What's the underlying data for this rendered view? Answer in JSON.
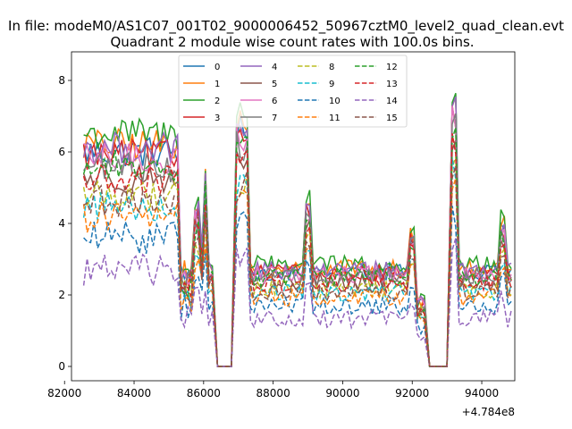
{
  "chart_data": {
    "type": "line",
    "suptitle": "In file: modeM0/AS1C07_001T02_9000006452_50967cztM0_level2_quad_clean.evt",
    "title": "Quadrant 2 module wise count rates with 100.0s bins.",
    "xlabel": "",
    "ylabel": "",
    "x_offset_label": "+4.784e8",
    "xlim": [
      82200,
      94950
    ],
    "ylim": [
      -0.4,
      8.8
    ],
    "xticks": [
      82000,
      84000,
      86000,
      88000,
      90000,
      92000,
      94000
    ],
    "yticks": [
      0,
      2,
      4,
      6,
      8
    ],
    "legend_position": "upper center",
    "legend_ncol": 4,
    "segments": [
      [
        82550,
        86250
      ],
      [
        86950,
        92350
      ],
      [
        93150,
        94850
      ]
    ],
    "series": [
      {
        "name": "0",
        "color": "#1f77b4",
        "dash": "solid",
        "level": 6.0
      },
      {
        "name": "1",
        "color": "#ff7f0e",
        "dash": "solid",
        "level": 6.2
      },
      {
        "name": "2",
        "color": "#2ca02c",
        "dash": "solid",
        "level": 6.5
      },
      {
        "name": "3",
        "color": "#d62728",
        "dash": "solid",
        "level": 5.9
      },
      {
        "name": "4",
        "color": "#9467bd",
        "dash": "solid",
        "level": 6.1
      },
      {
        "name": "5",
        "color": "#8c564b",
        "dash": "solid",
        "level": 5.3
      },
      {
        "name": "6",
        "color": "#e377c2",
        "dash": "solid",
        "level": 5.8
      },
      {
        "name": "7",
        "color": "#7f7f7f",
        "dash": "solid",
        "level": 5.6
      },
      {
        "name": "8",
        "color": "#bcbd22",
        "dash": "dashed",
        "level": 4.8
      },
      {
        "name": "9",
        "color": "#17becf",
        "dash": "dashed",
        "level": 4.5
      },
      {
        "name": "10",
        "color": "#1f77b4",
        "dash": "dashed",
        "level": 3.6
      },
      {
        "name": "11",
        "color": "#ff7f0e",
        "dash": "dashed",
        "level": 4.2
      },
      {
        "name": "12",
        "color": "#2ca02c",
        "dash": "dashed",
        "level": 5.6
      },
      {
        "name": "13",
        "color": "#d62728",
        "dash": "dashed",
        "level": 5.2
      },
      {
        "name": "14",
        "color": "#9467bd",
        "dash": "dashed",
        "level": 2.7
      },
      {
        "name": "15",
        "color": "#8c564b",
        "dash": "dashed",
        "level": 4.6
      }
    ]
  }
}
